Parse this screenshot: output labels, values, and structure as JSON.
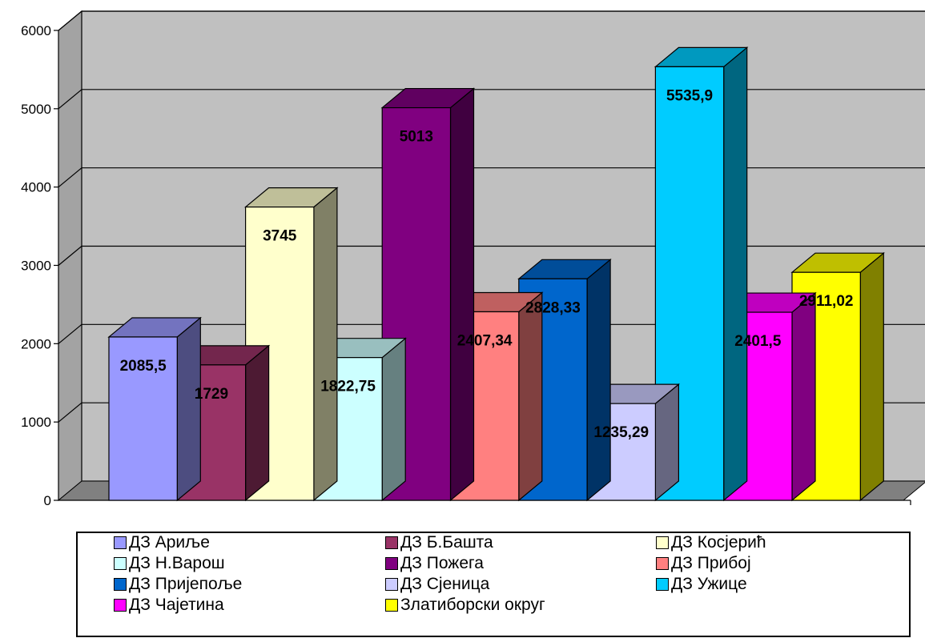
{
  "chart_data": {
    "type": "bar",
    "bar_style": "3d-clustered-column",
    "categories": [
      "ДЗ Ариље",
      "ДЗ Б.Башта",
      "ДЗ Косјерић",
      "ДЗ Н.Варош",
      "ДЗ Пожега",
      "ДЗ Прибој",
      "ДЗ Пријепоље",
      "ДЗ Сјеница",
      "ДЗ Ужице",
      "ДЗ Чајетина",
      "Златиборски округ"
    ],
    "values": [
      2085.5,
      1729,
      3745,
      1822.75,
      5013,
      2407.34,
      2828.33,
      1235.29,
      5535.9,
      2401.5,
      2911.02
    ],
    "data_labels": [
      "2085,5",
      "1729",
      "3745",
      "1822,75",
      "5013",
      "2407,34",
      "2828,33",
      "1235,29",
      "5535,9",
      "2401,5",
      "2911,02"
    ],
    "colors": [
      "#9999FF",
      "#993366",
      "#FFFFCC",
      "#CCFFFF",
      "#800080",
      "#FF8080",
      "#0066CC",
      "#CCCCFF",
      "#00CCFF",
      "#FF00FF",
      "#FFFF00"
    ],
    "ylim": [
      0,
      6000
    ],
    "yticks": [
      "0",
      "1000",
      "2000",
      "3000",
      "4000",
      "5000",
      "6000"
    ],
    "title": "",
    "xlabel": "",
    "ylabel": "",
    "grid": true,
    "legend_position": "bottom",
    "wall_color": "#C0C0C0",
    "floor_color": "#808080"
  }
}
